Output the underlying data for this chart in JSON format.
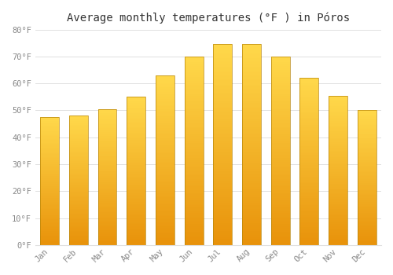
{
  "title": "Average monthly temperatures (°F ) in Póros",
  "months": [
    "Jan",
    "Feb",
    "Mar",
    "Apr",
    "May",
    "Jun",
    "Jul",
    "Aug",
    "Sep",
    "Oct",
    "Nov",
    "Dec"
  ],
  "values": [
    47.5,
    48,
    50.5,
    55,
    63,
    70,
    74.5,
    74.5,
    70,
    62,
    55.5,
    50
  ],
  "bar_color_bottom": "#E8920A",
  "bar_color_top": "#FFD84A",
  "bar_border_color": "#B8860B",
  "background_color": "#FFFFFF",
  "grid_color": "#E0E0E0",
  "tick_label_color": "#888888",
  "title_color": "#333333",
  "ylim": [
    0,
    80
  ],
  "yticks": [
    0,
    10,
    20,
    30,
    40,
    50,
    60,
    70,
    80
  ],
  "ytick_labels": [
    "0°F",
    "10°F",
    "20°F",
    "30°F",
    "40°F",
    "50°F",
    "60°F",
    "70°F",
    "80°F"
  ],
  "title_fontsize": 10,
  "tick_fontsize": 7.5,
  "font_family": "monospace"
}
